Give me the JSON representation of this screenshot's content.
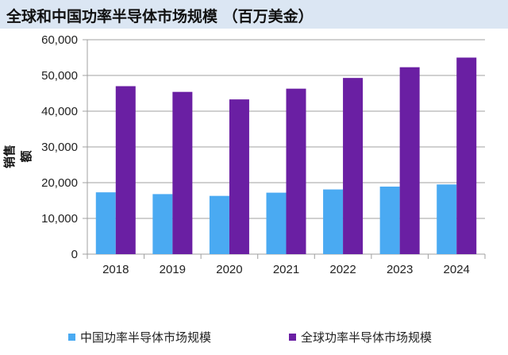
{
  "chart_data": {
    "type": "bar",
    "title": "全球和中国功率半导体市场规模 （百万美金）",
    "ylabel": "销售额",
    "xlabel": "",
    "categories": [
      "2018",
      "2019",
      "2020",
      "2021",
      "2022",
      "2023",
      "2024"
    ],
    "series": [
      {
        "name": "中国功率半导体市场规模",
        "color": "#4aaaf2",
        "values": [
          17300,
          16800,
          16300,
          17200,
          18100,
          18900,
          19500
        ]
      },
      {
        "name": "全球功率半导体市场规模",
        "color": "#6a1fa3",
        "values": [
          47000,
          45400,
          43300,
          46300,
          49300,
          52300,
          55000
        ]
      }
    ],
    "ylim": [
      0,
      60000
    ],
    "yticks": [
      "0",
      "10,000",
      "20,000",
      "30,000",
      "40,000",
      "50,000",
      "60,000"
    ],
    "grid": true,
    "legend": "bottom"
  }
}
